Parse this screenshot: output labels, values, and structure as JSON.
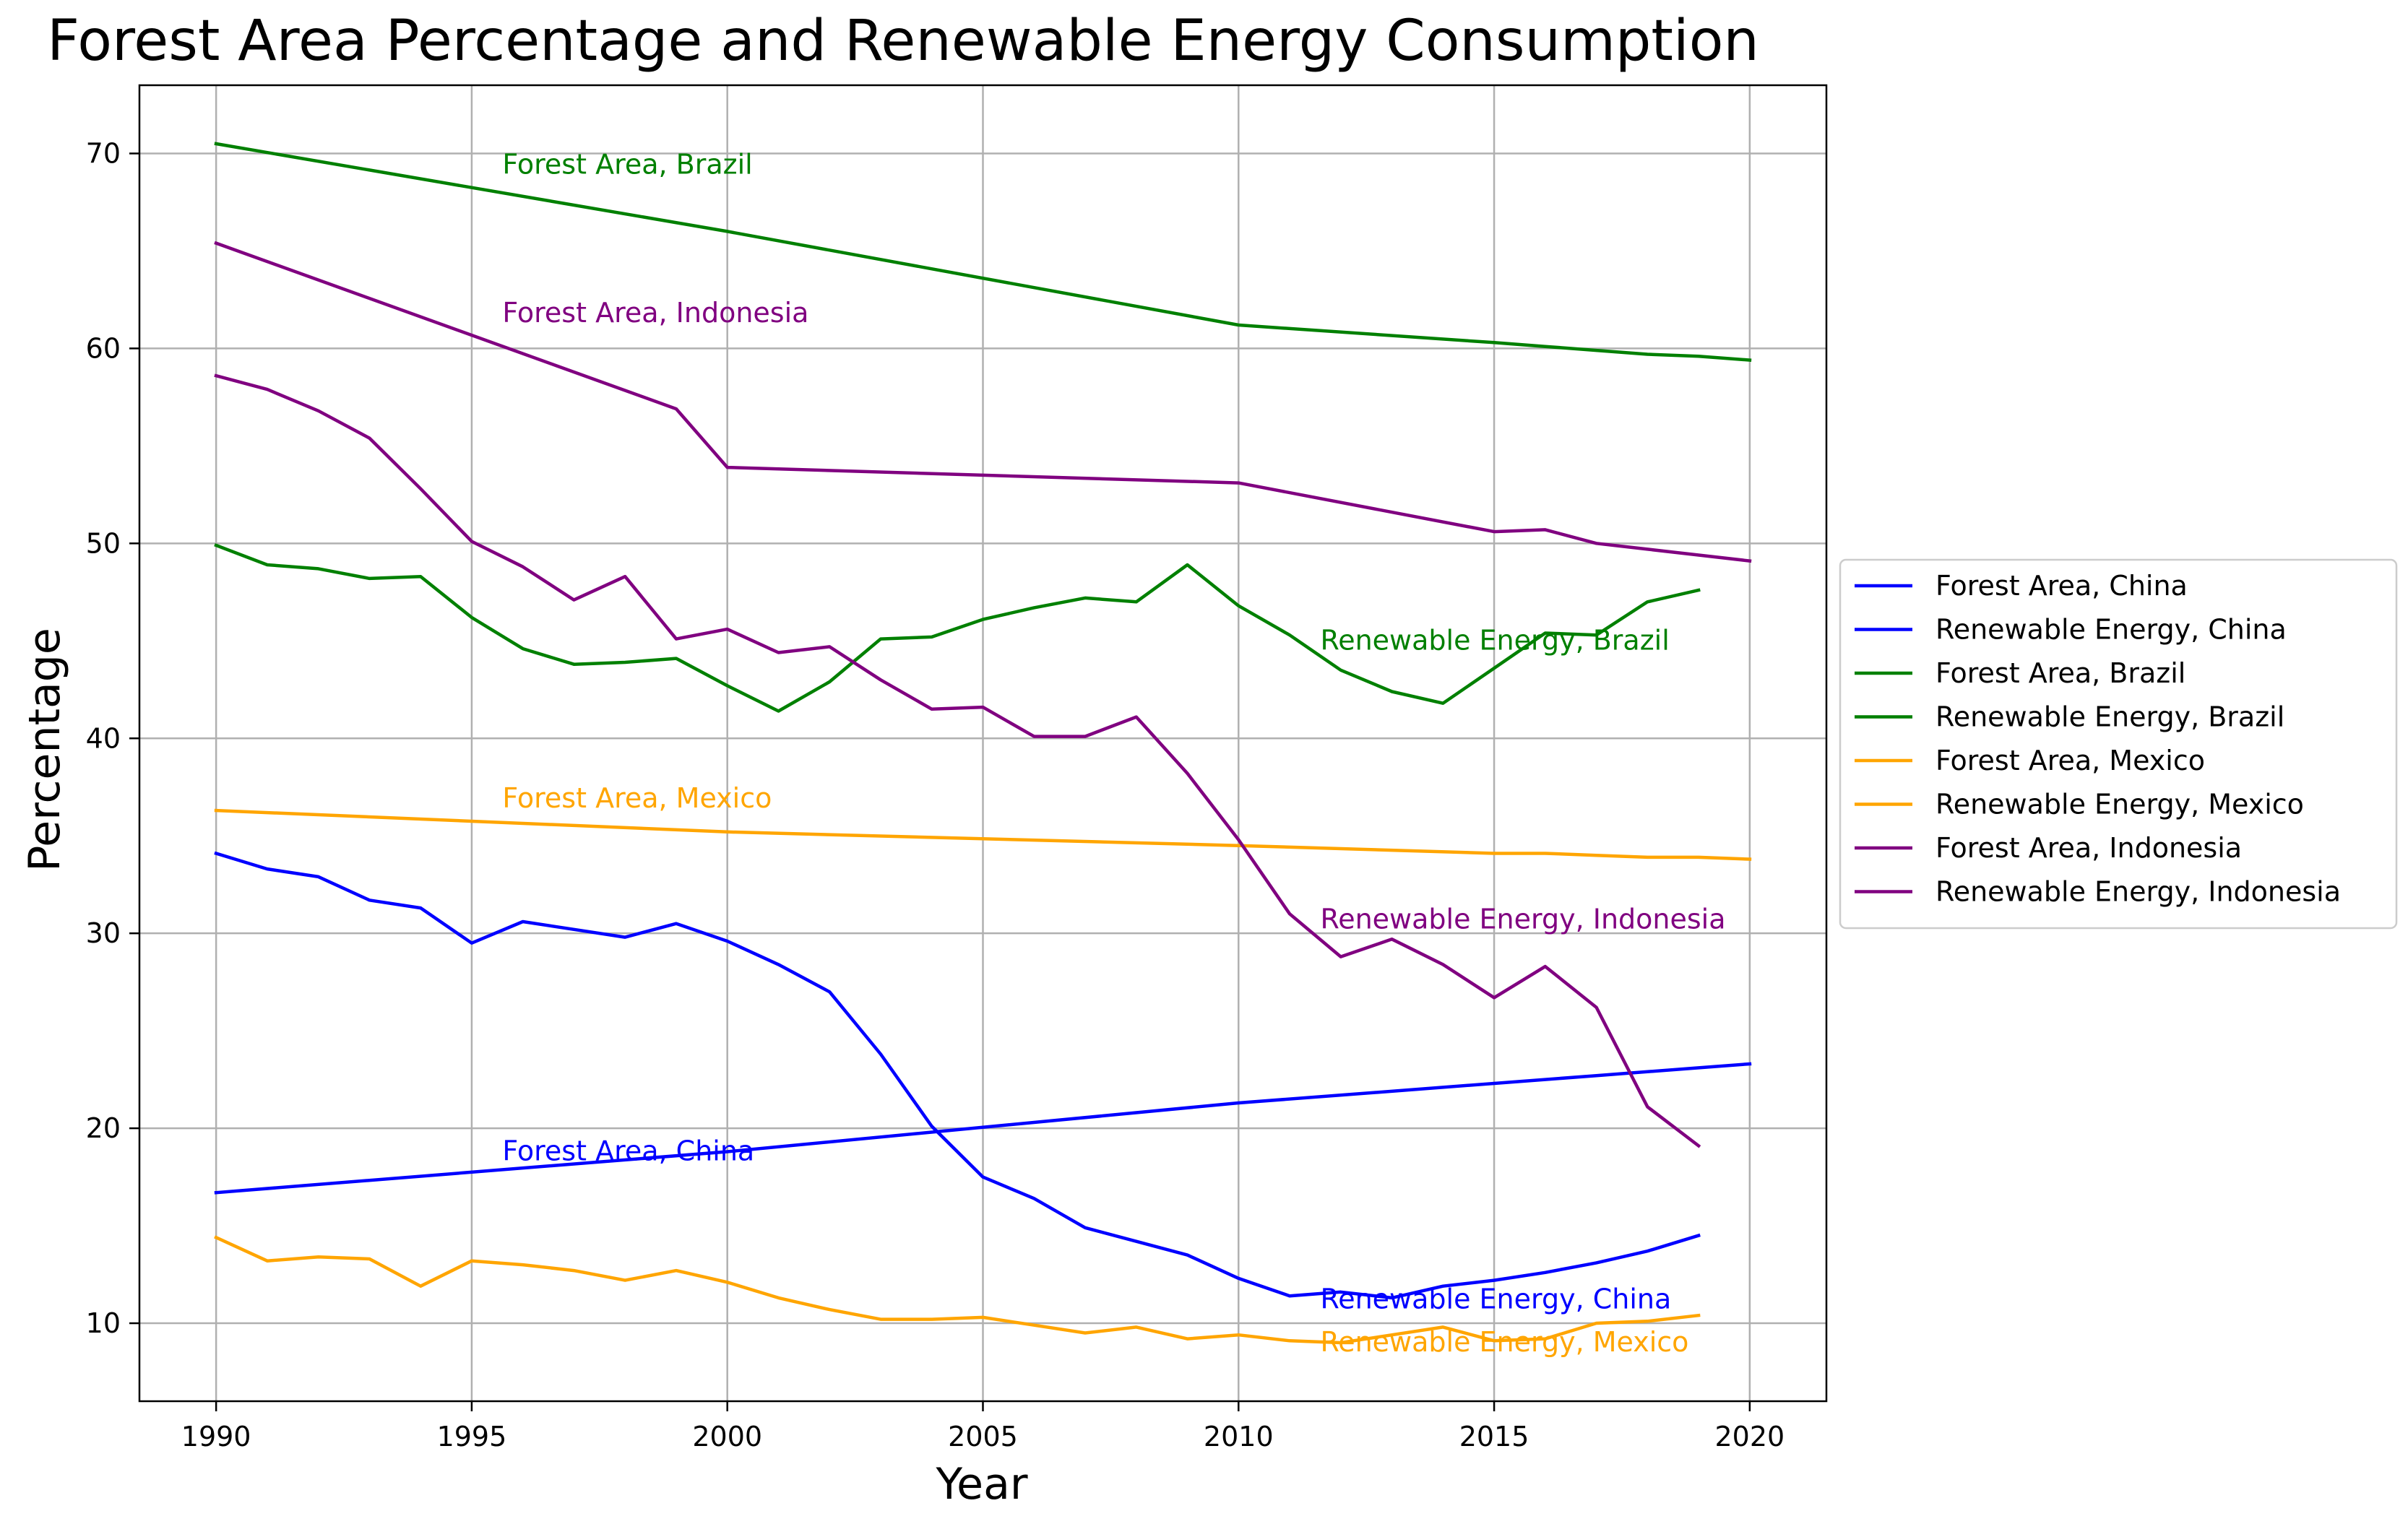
{
  "chart_data": {
    "type": "line",
    "title": "Forest Area Percentage and Renewable Energy Consumption",
    "xlabel": "Year",
    "ylabel": "Percentage",
    "xlim": [
      1988.5,
      2021.5
    ],
    "ylim": [
      6,
      73.5
    ],
    "xticks": [
      1990,
      1995,
      2000,
      2005,
      2010,
      2015,
      2020
    ],
    "yticks": [
      10,
      20,
      30,
      40,
      50,
      60,
      70
    ],
    "grid": true,
    "legend_position": "outside-right",
    "series": [
      {
        "name": "Forest Area, China",
        "color": "#0000ff",
        "x": [
          1990,
          2000,
          2010,
          2015,
          2016,
          2017,
          2018,
          2019,
          2020
        ],
        "y": [
          16.7,
          18.8,
          21.3,
          22.3,
          22.5,
          22.7,
          22.9,
          23.1,
          23.3
        ]
      },
      {
        "name": "Renewable Energy, China",
        "color": "#0000ff",
        "x": [
          1990,
          1991,
          1992,
          1993,
          1994,
          1995,
          1996,
          1997,
          1998,
          1999,
          2000,
          2001,
          2002,
          2003,
          2004,
          2005,
          2006,
          2007,
          2008,
          2009,
          2010,
          2011,
          2012,
          2013,
          2014,
          2015,
          2016,
          2017,
          2018,
          2019
        ],
        "y": [
          34.1,
          33.3,
          32.9,
          31.7,
          31.3,
          29.5,
          30.6,
          30.2,
          29.8,
          30.5,
          29.6,
          28.4,
          27.0,
          23.8,
          20.1,
          17.5,
          16.4,
          14.9,
          14.2,
          13.5,
          12.3,
          11.4,
          11.6,
          11.3,
          11.9,
          12.2,
          12.6,
          13.1,
          13.7,
          14.5
        ]
      },
      {
        "name": "Forest Area, Brazil",
        "color": "#008000",
        "x": [
          1990,
          2000,
          2010,
          2015,
          2016,
          2017,
          2018,
          2019,
          2020
        ],
        "y": [
          70.5,
          66.0,
          61.2,
          60.3,
          60.1,
          59.9,
          59.7,
          59.6,
          59.4
        ]
      },
      {
        "name": "Renewable Energy, Brazil",
        "color": "#008000",
        "x": [
          1990,
          1991,
          1992,
          1993,
          1994,
          1995,
          1996,
          1997,
          1998,
          1999,
          2000,
          2001,
          2002,
          2003,
          2004,
          2005,
          2006,
          2007,
          2008,
          2009,
          2010,
          2011,
          2012,
          2013,
          2014,
          2015,
          2016,
          2017,
          2018,
          2019
        ],
        "y": [
          49.9,
          48.9,
          48.7,
          48.2,
          48.3,
          46.2,
          44.6,
          43.8,
          43.9,
          44.1,
          42.7,
          41.4,
          42.9,
          45.1,
          45.2,
          46.1,
          46.7,
          47.2,
          47.0,
          48.9,
          46.8,
          45.3,
          43.5,
          42.4,
          41.8,
          43.6,
          45.4,
          45.3,
          47.0,
          47.6
        ]
      },
      {
        "name": "Forest Area, Mexico",
        "color": "#ffa500",
        "x": [
          1990,
          2000,
          2010,
          2015,
          2016,
          2017,
          2018,
          2019,
          2020
        ],
        "y": [
          36.3,
          35.2,
          34.5,
          34.1,
          34.1,
          34.0,
          33.9,
          33.9,
          33.8
        ]
      },
      {
        "name": "Renewable Energy, Mexico",
        "color": "#ffa500",
        "x": [
          1990,
          1991,
          1992,
          1993,
          1994,
          1995,
          1996,
          1997,
          1998,
          1999,
          2000,
          2001,
          2002,
          2003,
          2004,
          2005,
          2006,
          2007,
          2008,
          2009,
          2010,
          2011,
          2012,
          2013,
          2014,
          2015,
          2016,
          2017,
          2018,
          2019
        ],
        "y": [
          14.4,
          13.2,
          13.4,
          13.3,
          11.9,
          13.2,
          13.0,
          12.7,
          12.2,
          12.7,
          12.1,
          11.3,
          10.7,
          10.2,
          10.2,
          10.3,
          9.9,
          9.5,
          9.8,
          9.2,
          9.4,
          9.1,
          9.0,
          9.4,
          9.8,
          9.1,
          9.2,
          10.0,
          10.1,
          10.4
        ]
      },
      {
        "name": "Forest Area, Indonesia",
        "color": "#800080",
        "x": [
          1990,
          1999,
          2000,
          2010,
          2015,
          2016,
          2017,
          2018,
          2019,
          2020
        ],
        "y": [
          65.4,
          56.9,
          53.9,
          53.1,
          50.6,
          50.7,
          50.0,
          49.7,
          49.4,
          49.1
        ]
      },
      {
        "name": "Renewable Energy, Indonesia",
        "color": "#800080",
        "x": [
          1990,
          1991,
          1992,
          1993,
          1994,
          1995,
          1996,
          1997,
          1998,
          1999,
          2000,
          2001,
          2002,
          2003,
          2004,
          2005,
          2006,
          2007,
          2008,
          2009,
          2010,
          2011,
          2012,
          2013,
          2014,
          2015,
          2016,
          2017,
          2018,
          2019
        ],
        "y": [
          58.6,
          57.9,
          56.8,
          55.4,
          52.8,
          50.1,
          48.8,
          47.1,
          48.3,
          45.1,
          45.6,
          44.4,
          44.7,
          43.0,
          41.5,
          41.6,
          40.1,
          40.1,
          41.1,
          38.2,
          34.8,
          31.0,
          28.8,
          29.7,
          28.4,
          26.7,
          28.3,
          26.2,
          21.1,
          19.1
        ]
      }
    ],
    "annotations": [
      {
        "text": "Forest Area, Brazil",
        "x": 1995.6,
        "y": 69.4,
        "color": "#008000"
      },
      {
        "text": "Forest Area, Indonesia",
        "x": 1995.6,
        "y": 61.8,
        "color": "#800080"
      },
      {
        "text": "Renewable Energy, Brazil",
        "x": 2011.6,
        "y": 45.0,
        "color": "#008000"
      },
      {
        "text": "Forest Area, Mexico",
        "x": 1995.6,
        "y": 36.9,
        "color": "#ffa500"
      },
      {
        "text": "Renewable Energy, Indonesia",
        "x": 2011.6,
        "y": 30.7,
        "color": "#800080"
      },
      {
        "text": "Forest Area, China",
        "x": 1995.6,
        "y": 18.8,
        "color": "#0000ff"
      },
      {
        "text": "Renewable Energy, China",
        "x": 2011.6,
        "y": 11.2,
        "color": "#0000ff"
      },
      {
        "text": "Renewable Energy, Mexico",
        "x": 2011.6,
        "y": 9.0,
        "color": "#ffa500"
      }
    ]
  }
}
